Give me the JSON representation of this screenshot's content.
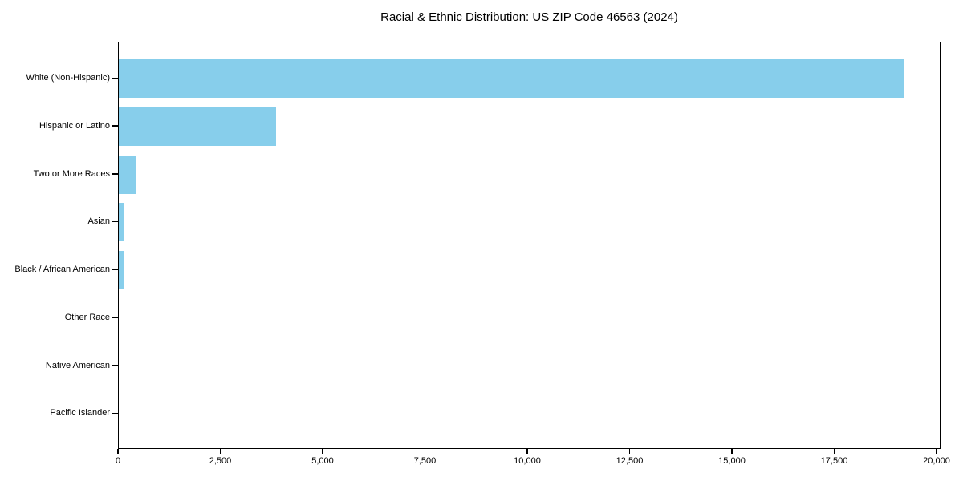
{
  "chart_data": {
    "type": "bar",
    "orientation": "horizontal",
    "title": "Racial & Ethnic Distribution: US ZIP Code 46563 (2024)",
    "categories": [
      "White (Non-Hispanic)",
      "Hispanic or Latino",
      "Two or More Races",
      "Asian",
      "Black / African American",
      "Other Race",
      "Native American",
      "Pacific Islander"
    ],
    "values": [
      19175,
      3840,
      415,
      140,
      135,
      0,
      0,
      0
    ],
    "bar_color": "#87CEEB",
    "text_color": "#000000",
    "xlabel": "",
    "ylabel": "",
    "xlim": [
      0,
      20100
    ],
    "xticks": [
      0,
      2500,
      5000,
      7500,
      10000,
      12500,
      15000,
      17500,
      20000
    ],
    "xtick_labels": [
      "0",
      "2,500",
      "5,000",
      "7,500",
      "10,000",
      "12,500",
      "15,000",
      "17,500",
      "20,000"
    ],
    "grid": false,
    "legend": null
  }
}
